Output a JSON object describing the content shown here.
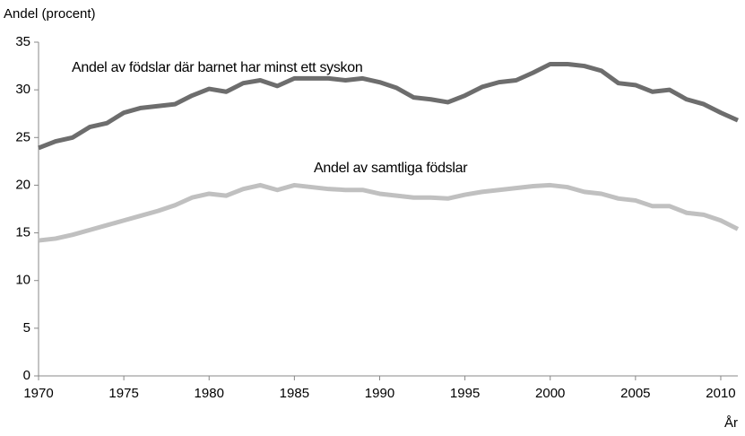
{
  "chart_data": {
    "type": "line",
    "y_label": "Andel (procent)",
    "x_label": "År",
    "x": [
      1970,
      1971,
      1972,
      1973,
      1974,
      1975,
      1976,
      1977,
      1978,
      1979,
      1980,
      1981,
      1982,
      1983,
      1984,
      1985,
      1986,
      1987,
      1988,
      1989,
      1990,
      1991,
      1992,
      1993,
      1994,
      1995,
      1996,
      1997,
      1998,
      1999,
      2000,
      2001,
      2002,
      2003,
      2004,
      2005,
      2006,
      2007,
      2008,
      2009,
      2010,
      2011
    ],
    "series": [
      {
        "name": "Andel av födslar där barnet har minst ett syskon",
        "color": "#6d6d6d",
        "values": [
          23.9,
          24.6,
          25.0,
          26.1,
          26.5,
          27.6,
          28.1,
          28.3,
          28.5,
          29.4,
          30.1,
          29.8,
          30.7,
          31.0,
          30.4,
          31.2,
          31.2,
          31.2,
          31.0,
          31.2,
          30.8,
          30.2,
          29.2,
          29.0,
          28.7,
          29.4,
          30.3,
          30.8,
          31.0,
          31.8,
          32.7,
          32.7,
          32.5,
          32.0,
          30.7,
          30.5,
          29.8,
          30.0,
          29.0,
          28.5,
          27.6,
          26.8
        ]
      },
      {
        "name": "Andel av samtliga födslar",
        "color": "#c0c0c0",
        "values": [
          14.2,
          14.4,
          14.8,
          15.3,
          15.8,
          16.3,
          16.8,
          17.3,
          17.9,
          18.7,
          19.1,
          18.9,
          19.6,
          20.0,
          19.5,
          20.0,
          19.8,
          19.6,
          19.5,
          19.5,
          19.1,
          18.9,
          18.7,
          18.7,
          18.6,
          19.0,
          19.3,
          19.5,
          19.7,
          19.9,
          20.0,
          19.8,
          19.3,
          19.1,
          18.6,
          18.4,
          17.8,
          17.8,
          17.1,
          16.9,
          16.3,
          15.4
        ]
      }
    ],
    "xlim": [
      1970,
      2011
    ],
    "xticks": [
      1970,
      1975,
      1980,
      1985,
      1990,
      1995,
      2000,
      2005,
      2010
    ],
    "ylim": [
      0,
      35
    ],
    "yticks": [
      0,
      5,
      10,
      15,
      20,
      25,
      30,
      35
    ],
    "grid": false
  }
}
